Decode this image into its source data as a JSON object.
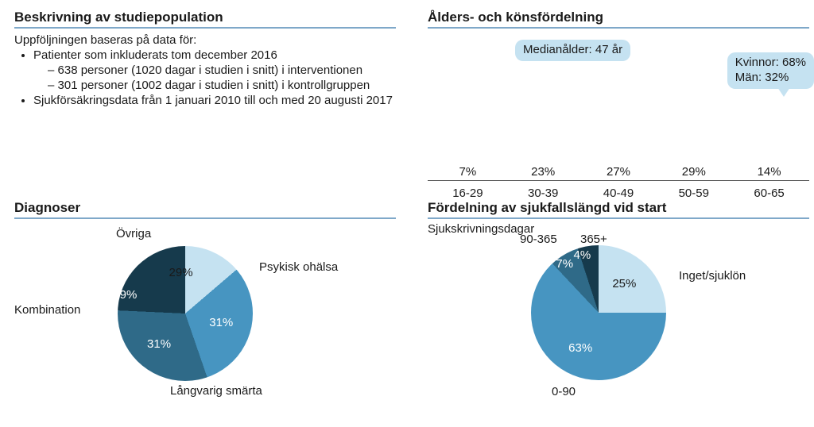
{
  "colors": {
    "rule": "#7fa8c9",
    "callout_bg": "#c5e2f1",
    "bar_fill": "#c5e2f1",
    "axis": "#555555",
    "pie_light": "#c5e2f1",
    "pie_mid": "#4795c1",
    "pie_dark": "#2f6a88",
    "pie_darker": "#285069",
    "pie_darkest": "#163a4c",
    "text": "#1a1a1a"
  },
  "desc": {
    "title": "Beskrivning av studiepopulation",
    "intro": "Uppföljningen baseras på data för:",
    "bullet1": "Patienter som inkluderats tom december 2016",
    "sub1": "638 personer (1020 dagar i studien i snitt) i interventionen",
    "sub2": "301 personer (1002 dagar i studien i snitt) i kontrollgruppen",
    "bullet2": "Sjukförsäkringsdata från 1 januari 2010 till och med 20 augusti 2017"
  },
  "age": {
    "title": "Ålders- och könsfördelning",
    "median_label": "Medianålder: 47 år",
    "gender_line1": "Kvinnor: 68%",
    "gender_line2": "Män: 32%",
    "categories": [
      "16-29",
      "30-39",
      "40-49",
      "50-59",
      "60-65"
    ],
    "values": [
      7,
      23,
      27,
      29,
      14
    ],
    "value_labels": [
      "7%",
      "23%",
      "27%",
      "29%",
      "14%"
    ],
    "ymax": 30
  },
  "diag": {
    "title": "Diagnoser",
    "slices": [
      {
        "label": "Psykisk ohälsa",
        "value": 29,
        "value_label": "29%",
        "color": "#c5e2f1"
      },
      {
        "label": "Långvarig smärta",
        "value": 31,
        "value_label": "31%",
        "color": "#4795c1"
      },
      {
        "label": "Kombination",
        "value": 31,
        "value_label": "31%",
        "color": "#2f6a88"
      },
      {
        "label": "Övriga",
        "value": 9,
        "value_label": "9%",
        "color": "#163a4c"
      }
    ],
    "start_angle_deg": -55
  },
  "sjukfall": {
    "title": "Fördelning av sjukfallslängd vid start",
    "subtitle": "Sjukskrivningsdagar",
    "slices": [
      {
        "label": "Inget/sjuklön",
        "value": 25,
        "value_label": "25%",
        "color": "#c5e2f1"
      },
      {
        "label": "0-90",
        "value": 63,
        "value_label": "63%",
        "color": "#4795c1"
      },
      {
        "label": "90-365",
        "value": 7,
        "value_label": "7%",
        "color": "#2f6a88"
      },
      {
        "label": "365+",
        "value": 4,
        "value_label": "4%",
        "color": "#163a4c"
      }
    ],
    "start_angle_deg": 0
  }
}
